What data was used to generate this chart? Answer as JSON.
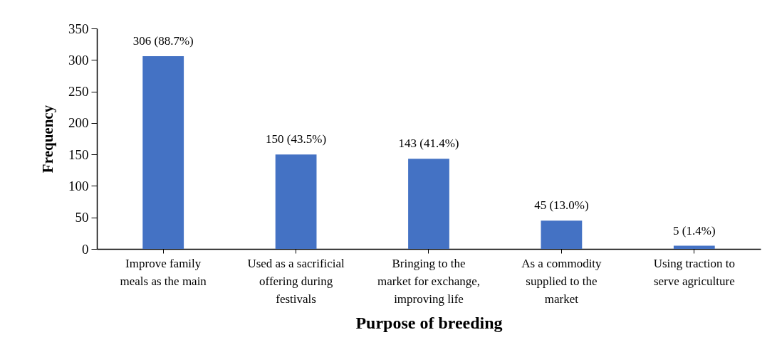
{
  "chart_data": {
    "type": "bar",
    "xlabel": "Purpose of breeding",
    "ylabel": "Frequency",
    "categories": [
      "Improve family meals as the main",
      "Used as a sacrificial offering during festivals",
      "Bringing to the market for exchange, improving life",
      "As a commodity supplied to the market",
      "Using traction to serve agriculture"
    ],
    "values": [
      306,
      150,
      143,
      45,
      5
    ],
    "value_labels": [
      "306 (88.7%)",
      "150 (43.5%)",
      "143 (41.4%)",
      "45 (13.0%)",
      "5 (1.4%)"
    ],
    "color": "#4472c4",
    "ylim": [
      0,
      350
    ],
    "yticks": [
      0,
      50,
      100,
      150,
      200,
      250,
      300,
      350
    ]
  }
}
